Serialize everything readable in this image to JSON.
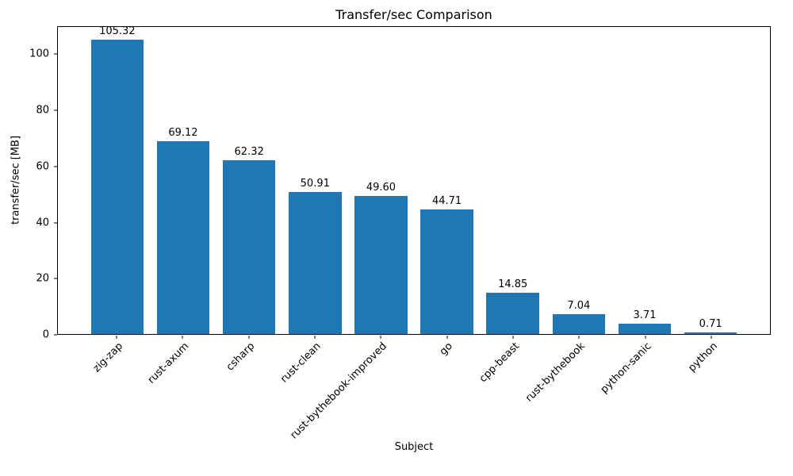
{
  "chart_data": {
    "type": "bar",
    "title": "Transfer/sec Comparison",
    "xlabel": "Subject",
    "ylabel": "transfer/sec [MB]",
    "categories": [
      "zig-zap",
      "rust-axum",
      "csharp",
      "rust-clean",
      "rust-bythebook-improved",
      "go",
      "cpp-beast",
      "rust-bythebook",
      "python-sanic",
      "python"
    ],
    "values": [
      105.32,
      69.12,
      62.32,
      50.91,
      49.6,
      44.71,
      14.85,
      7.04,
      3.71,
      0.71
    ],
    "value_labels": [
      "105.32",
      "69.12",
      "62.32",
      "50.91",
      "49.60",
      "44.71",
      "14.85",
      "7.04",
      "3.71",
      "0.71"
    ],
    "ylim": [
      0,
      110
    ],
    "yticks": [
      0,
      20,
      40,
      60,
      80,
      100
    ],
    "bar_color": "#1f77b4",
    "bar_width_fraction": 0.8,
    "x_margin": 0.9,
    "grid": false,
    "legend": "none"
  }
}
